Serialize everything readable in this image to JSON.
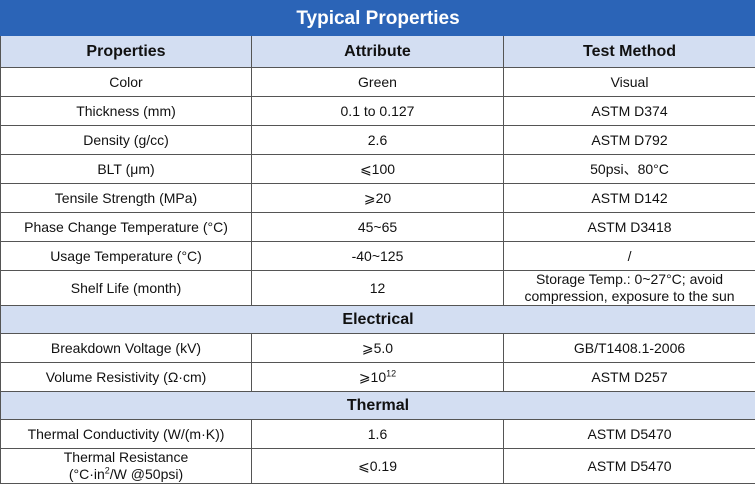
{
  "title": "Typical Properties",
  "headers": {
    "properties": "Properties",
    "attribute": "Attribute",
    "test_method": "Test Method"
  },
  "general_rows": [
    {
      "property": "Color",
      "attribute": "Green",
      "method": "Visual"
    },
    {
      "property": "Thickness (mm)",
      "attribute": "0.1 to 0.127",
      "method": "ASTM D374"
    },
    {
      "property": "Density (g/cc)",
      "attribute": "2.6",
      "method": "ASTM D792"
    },
    {
      "property": "BLT (μm)",
      "attribute": "⩽100",
      "method": "50psi、80°C"
    },
    {
      "property": "Tensile Strength (MPa)",
      "attribute": "⩾20",
      "method": "ASTM D142"
    },
    {
      "property": "Phase Change Temperature (°C)",
      "attribute": "45~65",
      "method": "ASTM D3418"
    },
    {
      "property": "Usage Temperature (°C)",
      "attribute": "-40~125",
      "method": "/"
    },
    {
      "property": "Shelf Life (month)",
      "attribute": "12",
      "method": "Storage Temp.: 0~27°C; avoid compression, exposure to the sun"
    }
  ],
  "electrical": {
    "label": "Electrical",
    "rows": [
      {
        "property": "Breakdown Voltage (kV)",
        "attribute": "⩾5.0",
        "method": "GB/T1408.1-2006"
      },
      {
        "property": "Volume Resistivity (Ω·cm)",
        "attribute_base": "⩾10",
        "attribute_exp": "12",
        "method": "ASTM D257"
      }
    ]
  },
  "thermal": {
    "label": "Thermal",
    "rows": [
      {
        "property": "Thermal Conductivity (W/(m·K))",
        "attribute": "1.6",
        "method": "ASTM D5470"
      },
      {
        "property_line1": "Thermal Resistance",
        "property_line2_a": "(°C·in",
        "property_line2_exp": "2",
        "property_line2_b": "/W @50psi)",
        "attribute": "⩽0.19",
        "method": "ASTM D5470"
      }
    ]
  }
}
